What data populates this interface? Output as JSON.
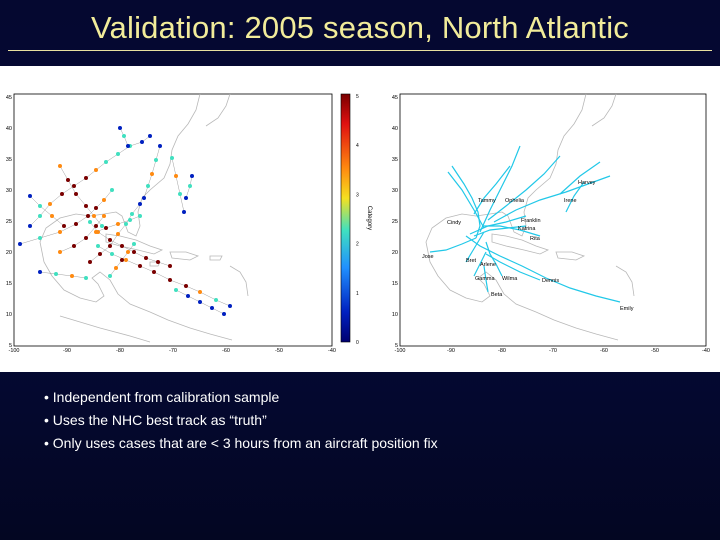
{
  "slide": {
    "title": "Validation: 2005 season, North Atlantic",
    "bullets": [
      "Independent from calibration sample",
      "Uses the NHC best track as “truth”",
      "Only uses cases that are < 3 hours from an aircraft position fix"
    ]
  },
  "left_map": {
    "lat_ticks": [
      "45",
      "40",
      "35",
      "30",
      "25",
      "20",
      "15",
      "10",
      "5"
    ],
    "lon_ticks": [
      "-100",
      "-90",
      "-80",
      "-70",
      "-60",
      "-50",
      "-40"
    ],
    "colorbar": {
      "label": "Category",
      "ticks": [
        "5",
        "4",
        "3",
        "2",
        "1",
        "0"
      ],
      "colors": [
        "#7a0000",
        "#e01010",
        "#ff8a10",
        "#f5e020",
        "#40e0c0",
        "#2090ff",
        "#0020c0",
        "#000070"
      ]
    }
  },
  "right_map": {
    "lat_ticks": [
      "45",
      "40",
      "35",
      "30",
      "25",
      "20",
      "15",
      "10",
      "5"
    ],
    "lon_ticks": [
      "-100",
      "-90",
      "-80",
      "-70",
      "-60",
      "-50",
      "-40"
    ],
    "track_color": "#22c8e8",
    "storm_labels": [
      "Harvey",
      "Irene",
      "Tammy",
      "Ophelia",
      "Franklin",
      "Cindy",
      "Katrina",
      "Rita",
      "Jose",
      "Bret",
      "Arlene",
      "Gamma",
      "Wilma",
      "Dennis",
      "Beta",
      "Emily"
    ]
  }
}
